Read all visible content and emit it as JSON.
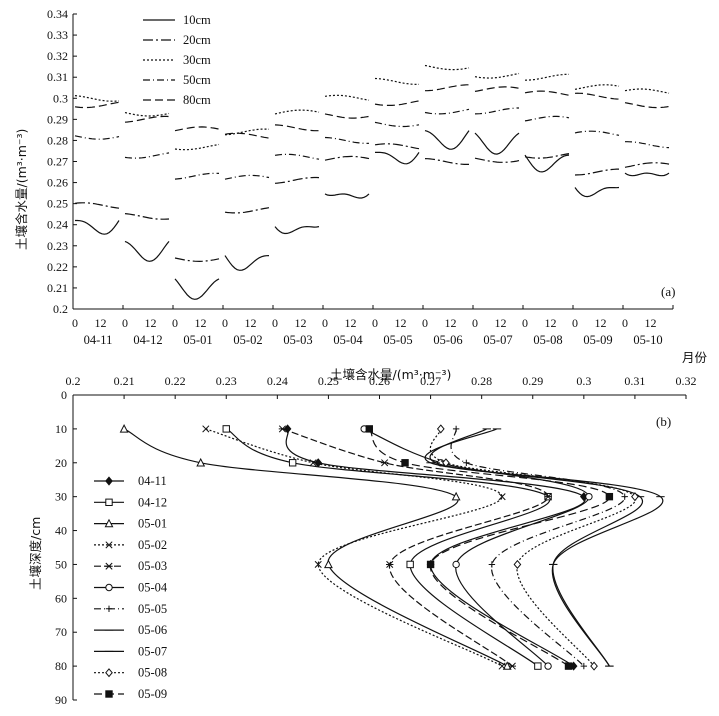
{
  "chart_data": [
    {
      "id": "a",
      "type": "line",
      "panel_label": "(a)",
      "ylabel": "土壤含水量/(m³·m⁻³)",
      "xlabel": "月份",
      "ylim": [
        0.2,
        0.34
      ],
      "yticks": [
        "0.2",
        "0.21",
        "0.22",
        "0.23",
        "0.24",
        "0.25",
        "0.26",
        "0.27",
        "0.28",
        "0.29",
        "0.3",
        "0.31",
        "0.32",
        "0.33",
        "0.34"
      ],
      "months": [
        "04-11",
        "04-12",
        "05-01",
        "05-02",
        "05-03",
        "05-04",
        "05-05",
        "05-06",
        "05-07",
        "05-08",
        "05-09",
        "05-10"
      ],
      "day_ticks": [
        "0",
        "12"
      ],
      "legend_position": "top-left",
      "series": [
        {
          "name": "10cm",
          "dash": "",
          "values": [
            0.242,
            0.23,
            0.212,
            0.225,
            0.241,
            0.257,
            0.275,
            0.283,
            0.281,
            0.272,
            0.259,
            0.267
          ]
        },
        {
          "name": "20cm",
          "dash": "10 3 2 3",
          "values": [
            0.249,
            0.244,
            0.224,
            0.247,
            0.261,
            0.271,
            0.277,
            0.27,
            0.271,
            0.273,
            0.265,
            0.268
          ]
        },
        {
          "name": "30cm",
          "dash": "2 2",
          "values": [
            0.3,
            0.293,
            0.277,
            0.284,
            0.293,
            0.3,
            0.308,
            0.315,
            0.311,
            0.31,
            0.305,
            0.303
          ]
        },
        {
          "name": "50cm",
          "dash": "7 3 1 3",
          "values": [
            0.282,
            0.273,
            0.263,
            0.262,
            0.272,
            0.28,
            0.288,
            0.294,
            0.294,
            0.29,
            0.283,
            0.278
          ]
        },
        {
          "name": "80cm",
          "dash": "8 4",
          "values": [
            0.297,
            0.29,
            0.285,
            0.282,
            0.286,
            0.292,
            0.298,
            0.305,
            0.304,
            0.302,
            0.301,
            0.297
          ]
        }
      ]
    },
    {
      "id": "b",
      "type": "line",
      "panel_label": "(b)",
      "xlabel": "土壤含水量/(m³·m⁻³)",
      "ylabel": "土壤深度/cm",
      "xlim": [
        0.2,
        0.32
      ],
      "ylim": [
        0,
        90
      ],
      "xticks": [
        "0.2",
        "0.21",
        "0.22",
        "0.23",
        "0.24",
        "0.25",
        "0.26",
        "0.27",
        "0.28",
        "0.29",
        "0.3",
        "0.31",
        "0.32"
      ],
      "yticks": [
        "0",
        "10",
        "20",
        "30",
        "40",
        "50",
        "60",
        "70",
        "80",
        "90"
      ],
      "depths": [
        10,
        20,
        30,
        50,
        80
      ],
      "legend_position": "left",
      "series": [
        {
          "name": "04-11",
          "marker": "diamond-filled",
          "dash": "",
          "values": [
            0.242,
            0.248,
            0.3,
            0.27,
            0.298
          ]
        },
        {
          "name": "04-12",
          "marker": "square-open",
          "dash": "",
          "values": [
            0.23,
            0.243,
            0.293,
            0.266,
            0.291
          ]
        },
        {
          "name": "05-01",
          "marker": "triangle-open",
          "dash": "",
          "values": [
            0.21,
            0.225,
            0.275,
            0.25,
            0.285
          ]
        },
        {
          "name": "05-02",
          "marker": "x",
          "dash": "2 2",
          "values": [
            0.226,
            0.247,
            0.284,
            0.248,
            0.284
          ]
        },
        {
          "name": "05-03",
          "marker": "asterisk",
          "dash": "7 3",
          "values": [
            0.241,
            0.261,
            0.293,
            0.262,
            0.286
          ]
        },
        {
          "name": "05-04",
          "marker": "circle-open",
          "dash": "",
          "values": [
            0.257,
            0.272,
            0.301,
            0.275,
            0.293
          ]
        },
        {
          "name": "05-05",
          "marker": "plus",
          "dash": "7 3 1 3",
          "values": [
            0.275,
            0.277,
            0.308,
            0.282,
            0.3
          ]
        },
        {
          "name": "05-06",
          "marker": "dash",
          "dash": "",
          "values": [
            0.283,
            0.27,
            0.315,
            0.294,
            0.305
          ]
        },
        {
          "name": "05-07",
          "marker": "dash",
          "dash": "",
          "values": [
            0.281,
            0.271,
            0.311,
            0.294,
            0.305
          ]
        },
        {
          "name": "05-08",
          "marker": "diamond-open",
          "dash": "2 2",
          "values": [
            0.272,
            0.273,
            0.31,
            0.287,
            0.302
          ]
        },
        {
          "name": "05-09",
          "marker": "square-filled",
          "dash": "8 4",
          "values": [
            0.258,
            0.265,
            0.305,
            0.27,
            0.297
          ]
        }
      ]
    }
  ]
}
